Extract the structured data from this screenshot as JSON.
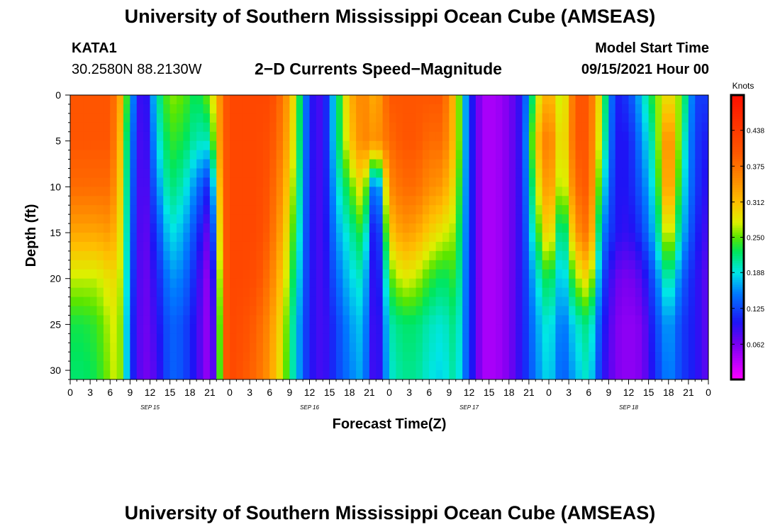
{
  "header": {
    "title": "University of Southern Mississippi Ocean Cube (AMSEAS)",
    "station": "KATA1",
    "coords": "30.2580N  88.2130W",
    "subtitle": "2−D Currents Speed−Magnitude",
    "model_label": "Model Start Time",
    "model_time": "09/15/2021 Hour 00",
    "footer_title": "University of Southern Mississippi Ocean Cube (AMSEAS)"
  },
  "chart_data": {
    "type": "heatmap",
    "title": "2−D Currents Speed−Magnitude",
    "xlabel": "Forecast Time(Z)",
    "ylabel": "Depth (ft)",
    "x_units": "hours since 09/15/2021 00Z",
    "xlim": [
      0,
      96
    ],
    "ylim": [
      0,
      31
    ],
    "y_inverted": true,
    "x_tick_values": [
      0,
      3,
      6,
      9,
      12,
      15,
      18,
      21,
      24,
      27,
      30,
      33,
      36,
      39,
      42,
      45,
      48,
      51,
      54,
      57,
      60,
      63,
      66,
      69,
      72,
      75,
      78,
      81,
      84,
      87,
      90,
      93,
      96
    ],
    "x_tick_labels": [
      "0",
      "3",
      "6",
      "9",
      "12",
      "15",
      "18",
      "21",
      "0",
      "3",
      "6",
      "9",
      "12",
      "15",
      "18",
      "21",
      "0",
      "3",
      "6",
      "9",
      "12",
      "15",
      "18",
      "21",
      "0",
      "3",
      "6",
      "9",
      "12",
      "15",
      "18",
      "21",
      "0"
    ],
    "day_labels": [
      {
        "hour": 12,
        "label": "SEP 15"
      },
      {
        "hour": 36,
        "label": "SEP 16"
      },
      {
        "hour": 60,
        "label": "SEP 17"
      },
      {
        "hour": 84,
        "label": "SEP 18"
      }
    ],
    "y_tick_values": [
      0,
      5,
      10,
      15,
      20,
      25,
      30
    ],
    "y_tick_labels": [
      "0",
      "5",
      "10",
      "15",
      "20",
      "25",
      "30"
    ],
    "colorbar": {
      "label": "Knots",
      "min": 0.0,
      "max": 0.5,
      "tick_values": [
        0.062,
        0.125,
        0.188,
        0.25,
        0.312,
        0.375,
        0.438
      ],
      "tick_labels": [
        "0.062",
        "0.125",
        "0.188",
        "0.250",
        "0.312",
        "0.375",
        "0.438"
      ]
    },
    "depths_ft": [
      0,
      5,
      10,
      15,
      20,
      25,
      31
    ],
    "hours": [
      0,
      2,
      4,
      6,
      7,
      8,
      9,
      11,
      13,
      15,
      17,
      19,
      21,
      22,
      23,
      24,
      26,
      28,
      30,
      32,
      34,
      36,
      38,
      40,
      42,
      44,
      46,
      48,
      50,
      52,
      54,
      56,
      58,
      60,
      62,
      64,
      66,
      68,
      70,
      72,
      74,
      76,
      78,
      80,
      82,
      84,
      86,
      88,
      90,
      92,
      94,
      96
    ],
    "speed_knots": [
      [
        0.4,
        0.4,
        0.4,
        0.4,
        0.36,
        0.3,
        0.18,
        0.06,
        0.2,
        0.26,
        0.25,
        0.22,
        0.26,
        0.31,
        0.38,
        0.42,
        0.42,
        0.42,
        0.42,
        0.37,
        0.27,
        0.1,
        0.08,
        0.2,
        0.32,
        0.36,
        0.32,
        0.4,
        0.4,
        0.4,
        0.4,
        0.4,
        0.3,
        0.12,
        0.04,
        0.04,
        0.06,
        0.1,
        0.26,
        0.34,
        0.25,
        0.4,
        0.4,
        0.26,
        0.1,
        0.12,
        0.18,
        0.25,
        0.3,
        0.25,
        0.12,
        0.12
      ],
      [
        0.4,
        0.4,
        0.4,
        0.4,
        0.35,
        0.28,
        0.16,
        0.06,
        0.18,
        0.24,
        0.23,
        0.2,
        0.2,
        0.3,
        0.38,
        0.42,
        0.42,
        0.42,
        0.41,
        0.36,
        0.26,
        0.1,
        0.08,
        0.2,
        0.3,
        0.36,
        0.34,
        0.38,
        0.4,
        0.4,
        0.38,
        0.38,
        0.3,
        0.12,
        0.04,
        0.04,
        0.06,
        0.1,
        0.3,
        0.38,
        0.26,
        0.4,
        0.4,
        0.24,
        0.1,
        0.1,
        0.16,
        0.22,
        0.38,
        0.22,
        0.12,
        0.1
      ],
      [
        0.38,
        0.38,
        0.38,
        0.38,
        0.33,
        0.27,
        0.15,
        0.06,
        0.15,
        0.22,
        0.2,
        0.15,
        0.1,
        0.25,
        0.38,
        0.42,
        0.42,
        0.42,
        0.4,
        0.34,
        0.24,
        0.1,
        0.08,
        0.18,
        0.24,
        0.3,
        0.1,
        0.35,
        0.38,
        0.38,
        0.35,
        0.34,
        0.28,
        0.12,
        0.04,
        0.04,
        0.06,
        0.1,
        0.26,
        0.36,
        0.24,
        0.38,
        0.4,
        0.2,
        0.1,
        0.1,
        0.14,
        0.2,
        0.37,
        0.2,
        0.12,
        0.09
      ],
      [
        0.33,
        0.33,
        0.33,
        0.34,
        0.31,
        0.26,
        0.14,
        0.06,
        0.12,
        0.19,
        0.17,
        0.12,
        0.06,
        0.2,
        0.38,
        0.42,
        0.42,
        0.42,
        0.39,
        0.32,
        0.22,
        0.1,
        0.08,
        0.16,
        0.2,
        0.24,
        0.06,
        0.3,
        0.34,
        0.33,
        0.3,
        0.28,
        0.26,
        0.12,
        0.04,
        0.04,
        0.06,
        0.1,
        0.22,
        0.32,
        0.18,
        0.34,
        0.38,
        0.16,
        0.1,
        0.09,
        0.12,
        0.18,
        0.3,
        0.18,
        0.11,
        0.08
      ],
      [
        0.27,
        0.27,
        0.27,
        0.29,
        0.29,
        0.25,
        0.13,
        0.06,
        0.1,
        0.16,
        0.15,
        0.1,
        0.04,
        0.15,
        0.38,
        0.42,
        0.42,
        0.41,
        0.37,
        0.3,
        0.2,
        0.1,
        0.08,
        0.14,
        0.18,
        0.2,
        0.06,
        0.24,
        0.28,
        0.27,
        0.24,
        0.22,
        0.24,
        0.12,
        0.04,
        0.04,
        0.06,
        0.1,
        0.18,
        0.24,
        0.16,
        0.26,
        0.3,
        0.13,
        0.07,
        0.06,
        0.08,
        0.14,
        0.22,
        0.14,
        0.1,
        0.07
      ],
      [
        0.23,
        0.23,
        0.24,
        0.27,
        0.28,
        0.24,
        0.12,
        0.06,
        0.09,
        0.14,
        0.13,
        0.09,
        0.04,
        0.12,
        0.38,
        0.42,
        0.41,
        0.39,
        0.35,
        0.28,
        0.18,
        0.1,
        0.08,
        0.12,
        0.16,
        0.18,
        0.06,
        0.2,
        0.22,
        0.22,
        0.2,
        0.19,
        0.22,
        0.12,
        0.04,
        0.04,
        0.06,
        0.1,
        0.16,
        0.2,
        0.14,
        0.19,
        0.22,
        0.11,
        0.06,
        0.05,
        0.06,
        0.12,
        0.17,
        0.12,
        0.1,
        0.07
      ],
      [
        0.22,
        0.22,
        0.23,
        0.26,
        0.28,
        0.24,
        0.12,
        0.06,
        0.08,
        0.14,
        0.13,
        0.09,
        0.04,
        0.11,
        0.38,
        0.42,
        0.4,
        0.38,
        0.34,
        0.27,
        0.18,
        0.1,
        0.08,
        0.12,
        0.15,
        0.17,
        0.06,
        0.19,
        0.21,
        0.21,
        0.19,
        0.18,
        0.21,
        0.12,
        0.04,
        0.04,
        0.06,
        0.1,
        0.15,
        0.19,
        0.13,
        0.17,
        0.2,
        0.1,
        0.06,
        0.05,
        0.06,
        0.11,
        0.16,
        0.12,
        0.1,
        0.07
      ]
    ]
  }
}
